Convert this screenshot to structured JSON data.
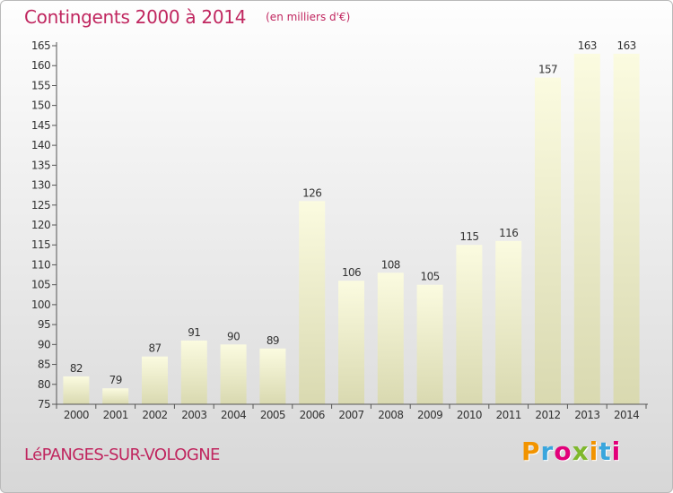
{
  "header": {
    "title": "Contingents 2000 à 2014",
    "subtitle": "(en milliers d'€)"
  },
  "footer": {
    "location": "LéPANGES-SUR-VOLOGNE",
    "logo_text": "Proxiti"
  },
  "colors": {
    "accent": "#c0265f",
    "bar_top": "#fbfbe0",
    "bar_bottom": "#d9d9b0",
    "axis": "#555555"
  },
  "chart_data": {
    "type": "bar",
    "categories": [
      "2000",
      "2001",
      "2002",
      "2003",
      "2004",
      "2005",
      "2006",
      "2007",
      "2008",
      "2009",
      "2010",
      "2011",
      "2012",
      "2013",
      "2014"
    ],
    "values": [
      82,
      79,
      87,
      91,
      90,
      89,
      126,
      106,
      108,
      105,
      115,
      116,
      157,
      163,
      163
    ],
    "ylim": [
      75,
      165
    ],
    "yticks": [
      75,
      80,
      85,
      90,
      95,
      100,
      105,
      110,
      115,
      120,
      125,
      130,
      135,
      140,
      145,
      150,
      155,
      160,
      165
    ],
    "grid": false,
    "data_labels": true
  }
}
